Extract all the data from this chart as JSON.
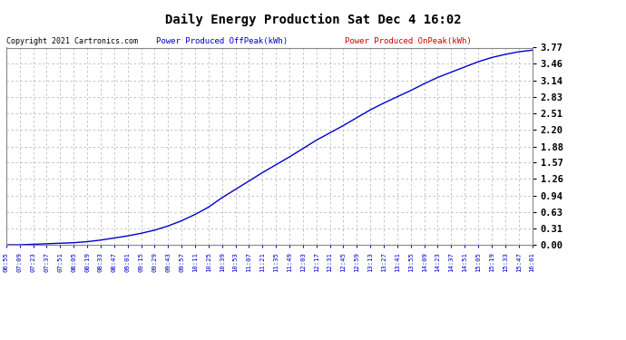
{
  "title": "Daily Energy Production Sat Dec 4 16:02",
  "copyright": "Copyright 2021 Cartronics.com",
  "legend_offpeak": "Power Produced OffPeak(kWh)",
  "legend_onpeak": "Power Produced OnPeak(kWh)",
  "offpeak_color": "#0000cc",
  "onpeak_color": "#cc0000",
  "yticks": [
    0.0,
    0.31,
    0.63,
    0.94,
    1.26,
    1.57,
    1.88,
    2.2,
    2.51,
    2.83,
    3.14,
    3.46,
    3.77
  ],
  "ymin": 0.0,
  "ymax": 3.77,
  "background_color": "#ffffff",
  "grid_color": "#bbbbbb",
  "xtick_labels": [
    "06:55",
    "07:09",
    "07:23",
    "07:37",
    "07:51",
    "08:05",
    "08:19",
    "08:33",
    "08:47",
    "09:01",
    "09:15",
    "09:29",
    "09:43",
    "09:57",
    "10:11",
    "10:25",
    "10:39",
    "10:53",
    "11:07",
    "11:21",
    "11:35",
    "11:49",
    "12:03",
    "12:17",
    "12:31",
    "12:45",
    "12:59",
    "13:13",
    "13:27",
    "13:41",
    "13:55",
    "14:09",
    "14:23",
    "14:37",
    "14:51",
    "15:05",
    "15:19",
    "15:33",
    "15:47",
    "16:01"
  ],
  "ydata": [
    0.0,
    0.0,
    0.01,
    0.02,
    0.03,
    0.04,
    0.06,
    0.09,
    0.13,
    0.17,
    0.22,
    0.28,
    0.36,
    0.46,
    0.58,
    0.72,
    0.9,
    1.06,
    1.22,
    1.38,
    1.53,
    1.68,
    1.84,
    2.0,
    2.14,
    2.28,
    2.43,
    2.58,
    2.71,
    2.83,
    2.95,
    3.08,
    3.2,
    3.3,
    3.4,
    3.5,
    3.58,
    3.64,
    3.69,
    3.72
  ]
}
